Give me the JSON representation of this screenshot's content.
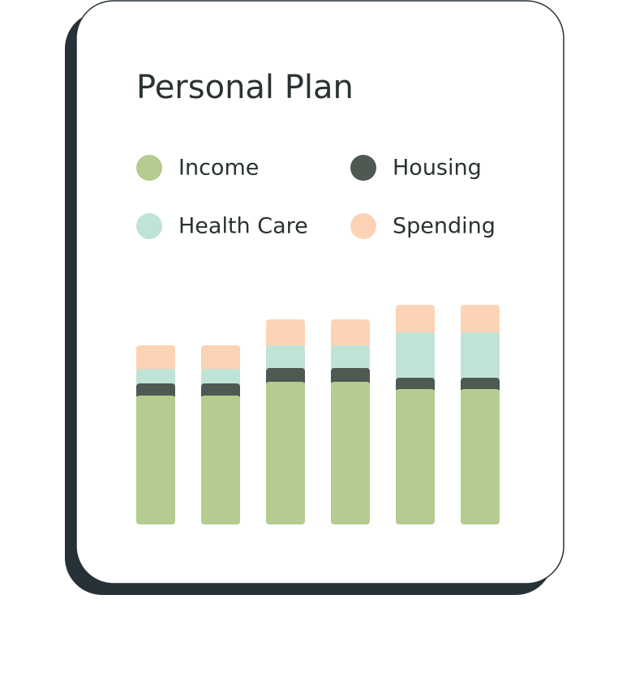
{
  "chart_data": {
    "type": "stacked-bar",
    "title": "Personal Plan",
    "categories": [
      null,
      null,
      null,
      null,
      null,
      null
    ],
    "series": [
      {
        "name": "Income",
        "color": "#b4cc90",
        "values": [
          159,
          159,
          176,
          176,
          167,
          167
        ]
      },
      {
        "name": "Housing",
        "color": "#4e5952",
        "values": [
          15,
          15,
          17,
          17,
          14,
          14
        ]
      },
      {
        "name": "Health Care",
        "color": "#bfe3d6",
        "values": [
          18,
          18,
          28,
          28,
          56,
          56
        ]
      },
      {
        "name": "Spending",
        "color": "#fdd3b5",
        "values": [
          29,
          29,
          32,
          32,
          34,
          34
        ]
      }
    ]
  }
}
